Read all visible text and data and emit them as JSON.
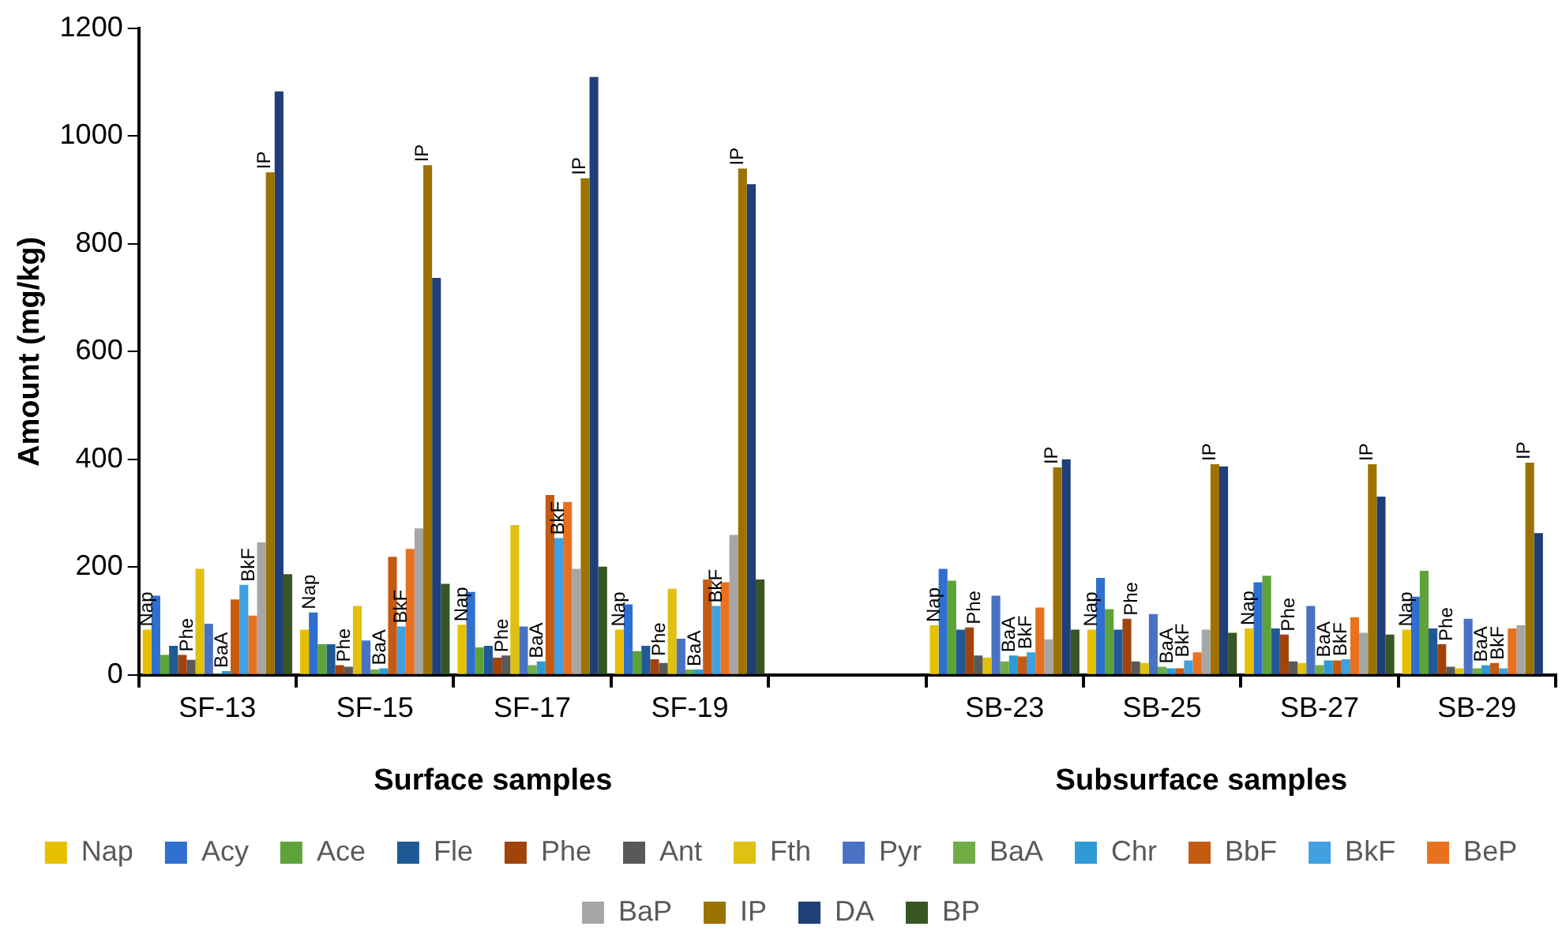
{
  "chart_data": {
    "type": "bar",
    "ylabel": "Amount (mg/kg)",
    "categories": [
      "SF-13",
      "SF-15",
      "SF-17",
      "SF-19",
      null,
      "SB-23",
      "SB-25",
      "SB-27",
      "SB-29"
    ],
    "ylim": [
      0,
      1200
    ],
    "yticks": [
      0,
      200,
      400,
      600,
      800,
      1000,
      1200
    ],
    "grid": false,
    "legend": "bottom",
    "series": [
      {
        "name": "Nap",
        "color": "#e6c000",
        "values": [
          84,
          84,
          93,
          84,
          null,
          92,
          84,
          86,
          84
        ],
        "value_labels": [
          "Nap",
          "Nap",
          "Nap",
          "Nap",
          null,
          "Nap",
          "Nap",
          "Nap",
          "Nap"
        ]
      },
      {
        "name": "Acy",
        "color": "#2e6fcf",
        "values": [
          147,
          116,
          154,
          131,
          null,
          197,
          180,
          172,
          145
        ]
      },
      {
        "name": "Ace",
        "color": "#5ea33a",
        "values": [
          37,
          57,
          51,
          44,
          null,
          175,
          122,
          184,
          193
        ]
      },
      {
        "name": "Fle",
        "color": "#1f5a96",
        "values": [
          54,
          57,
          54,
          54,
          null,
          84,
          84,
          86,
          86
        ]
      },
      {
        "name": "Phe",
        "color": "#a0440c",
        "values": [
          37,
          18,
          32,
          29,
          null,
          88,
          104,
          75,
          57
        ],
        "value_labels": [
          "Phe",
          "Phe",
          "Phe",
          "Phe",
          null,
          "Phe",
          "Phe",
          "Phe",
          "Phe"
        ]
      },
      {
        "name": "Ant",
        "color": "#595959",
        "values": [
          28,
          15,
          36,
          22,
          null,
          36,
          25,
          25,
          15
        ]
      },
      {
        "name": "Fth",
        "color": "#e0c010",
        "values": [
          197,
          128,
          278,
          160,
          null,
          32,
          22,
          22,
          12
        ]
      },
      {
        "name": "Pyr",
        "color": "#4a72c4",
        "values": [
          95,
          64,
          90,
          67,
          null,
          147,
          113,
          128,
          104
        ]
      },
      {
        "name": "BaA",
        "color": "#70ad47",
        "values": [
          3,
          10,
          18,
          10,
          null,
          25,
          15,
          18,
          12
        ],
        "value_labels": [
          "BaA",
          "BaA",
          "BaA",
          "BaA",
          null,
          "BaA",
          "BaA",
          "BaA",
          "BaA"
        ]
      },
      {
        "name": "Chr",
        "color": "#2e9ad6",
        "values": [
          7,
          12,
          25,
          10,
          null,
          36,
          12,
          27,
          18
        ]
      },
      {
        "name": "BbF",
        "color": "#c55a11",
        "values": [
          140,
          219,
          334,
          177,
          null,
          34,
          12,
          27,
          22
        ]
      },
      {
        "name": "BkF",
        "color": "#41a0e0",
        "values": [
          167,
          90,
          254,
          128,
          null,
          42,
          27,
          29,
          12
        ],
        "value_labels": [
          "BkF",
          "BkF",
          "BkF",
          "BkF",
          null,
          "BkF",
          "BkF",
          "BkF",
          "BkF"
        ]
      },
      {
        "name": "BeP",
        "color": "#e8711f",
        "values": [
          110,
          234,
          321,
          172,
          null,
          125,
          42,
          107,
          86
        ]
      },
      {
        "name": "BaP",
        "color": "#a6a6a6",
        "values": [
          246,
          272,
          197,
          260,
          null,
          66,
          84,
          78,
          92
        ]
      },
      {
        "name": "IP",
        "color": "#9c7200",
        "values": [
          933,
          946,
          922,
          940,
          null,
          385,
          391,
          391,
          394
        ],
        "value_labels": [
          "IP",
          "IP",
          "IP",
          "IP",
          null,
          "IP",
          "IP",
          "IP",
          "IP"
        ]
      },
      {
        "name": "DA",
        "color": "#1f3f7a",
        "values": [
          1083,
          737,
          1110,
          911,
          null,
          400,
          387,
          331,
          263
        ]
      },
      {
        "name": "BP",
        "color": "#375623",
        "values": [
          187,
          169,
          201,
          177,
          null,
          84,
          78,
          75,
          null
        ]
      }
    ],
    "annotations": [
      "Surface samples",
      "Subsurface samples"
    ]
  }
}
